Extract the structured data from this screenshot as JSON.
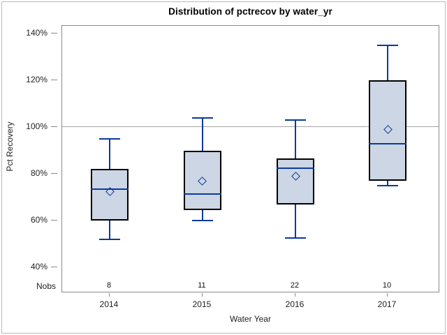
{
  "chart_data": {
    "type": "box",
    "title": "Distribution of pctrecov by water_yr",
    "xlabel": "Water Year",
    "ylabel": "Pct Recovery",
    "nobs_label": "Nobs",
    "categories": [
      "2014",
      "2015",
      "2016",
      "2017"
    ],
    "nobs": [
      "8",
      "11",
      "22",
      "10"
    ],
    "yticks": [
      40,
      60,
      80,
      100,
      120,
      140
    ],
    "ytick_suffix": "%",
    "ylim": [
      29,
      143.3
    ],
    "refline_y": 100,
    "grid": false,
    "legend_position": "none",
    "series": [
      {
        "category": "2014",
        "nobs": 8,
        "whisker_low": 52,
        "q1": 60,
        "median": 73.5,
        "mean": 72.5,
        "q3": 82,
        "whisker_high": 95
      },
      {
        "category": "2015",
        "nobs": 11,
        "whisker_low": 60,
        "q1": 64.5,
        "median": 71.5,
        "mean": 77,
        "q3": 90,
        "whisker_high": 104
      },
      {
        "category": "2016",
        "nobs": 22,
        "whisker_low": 52.5,
        "q1": 67,
        "median": 82.5,
        "mean": 79,
        "q3": 86.5,
        "whisker_high": 103
      },
      {
        "category": "2017",
        "nobs": 10,
        "whisker_low": 75,
        "q1": 77,
        "median": 93,
        "mean": 99,
        "q3": 120,
        "whisker_high": 135
      }
    ],
    "colors": {
      "box_fill": "#ccd6e4",
      "box_border": "#000000",
      "whisker": "#0b399c",
      "median": "#0b399c",
      "mean_marker": "#0b399c",
      "refline": "#a6a6a6",
      "axis": "#8a8a8a",
      "text": "#222222"
    }
  }
}
